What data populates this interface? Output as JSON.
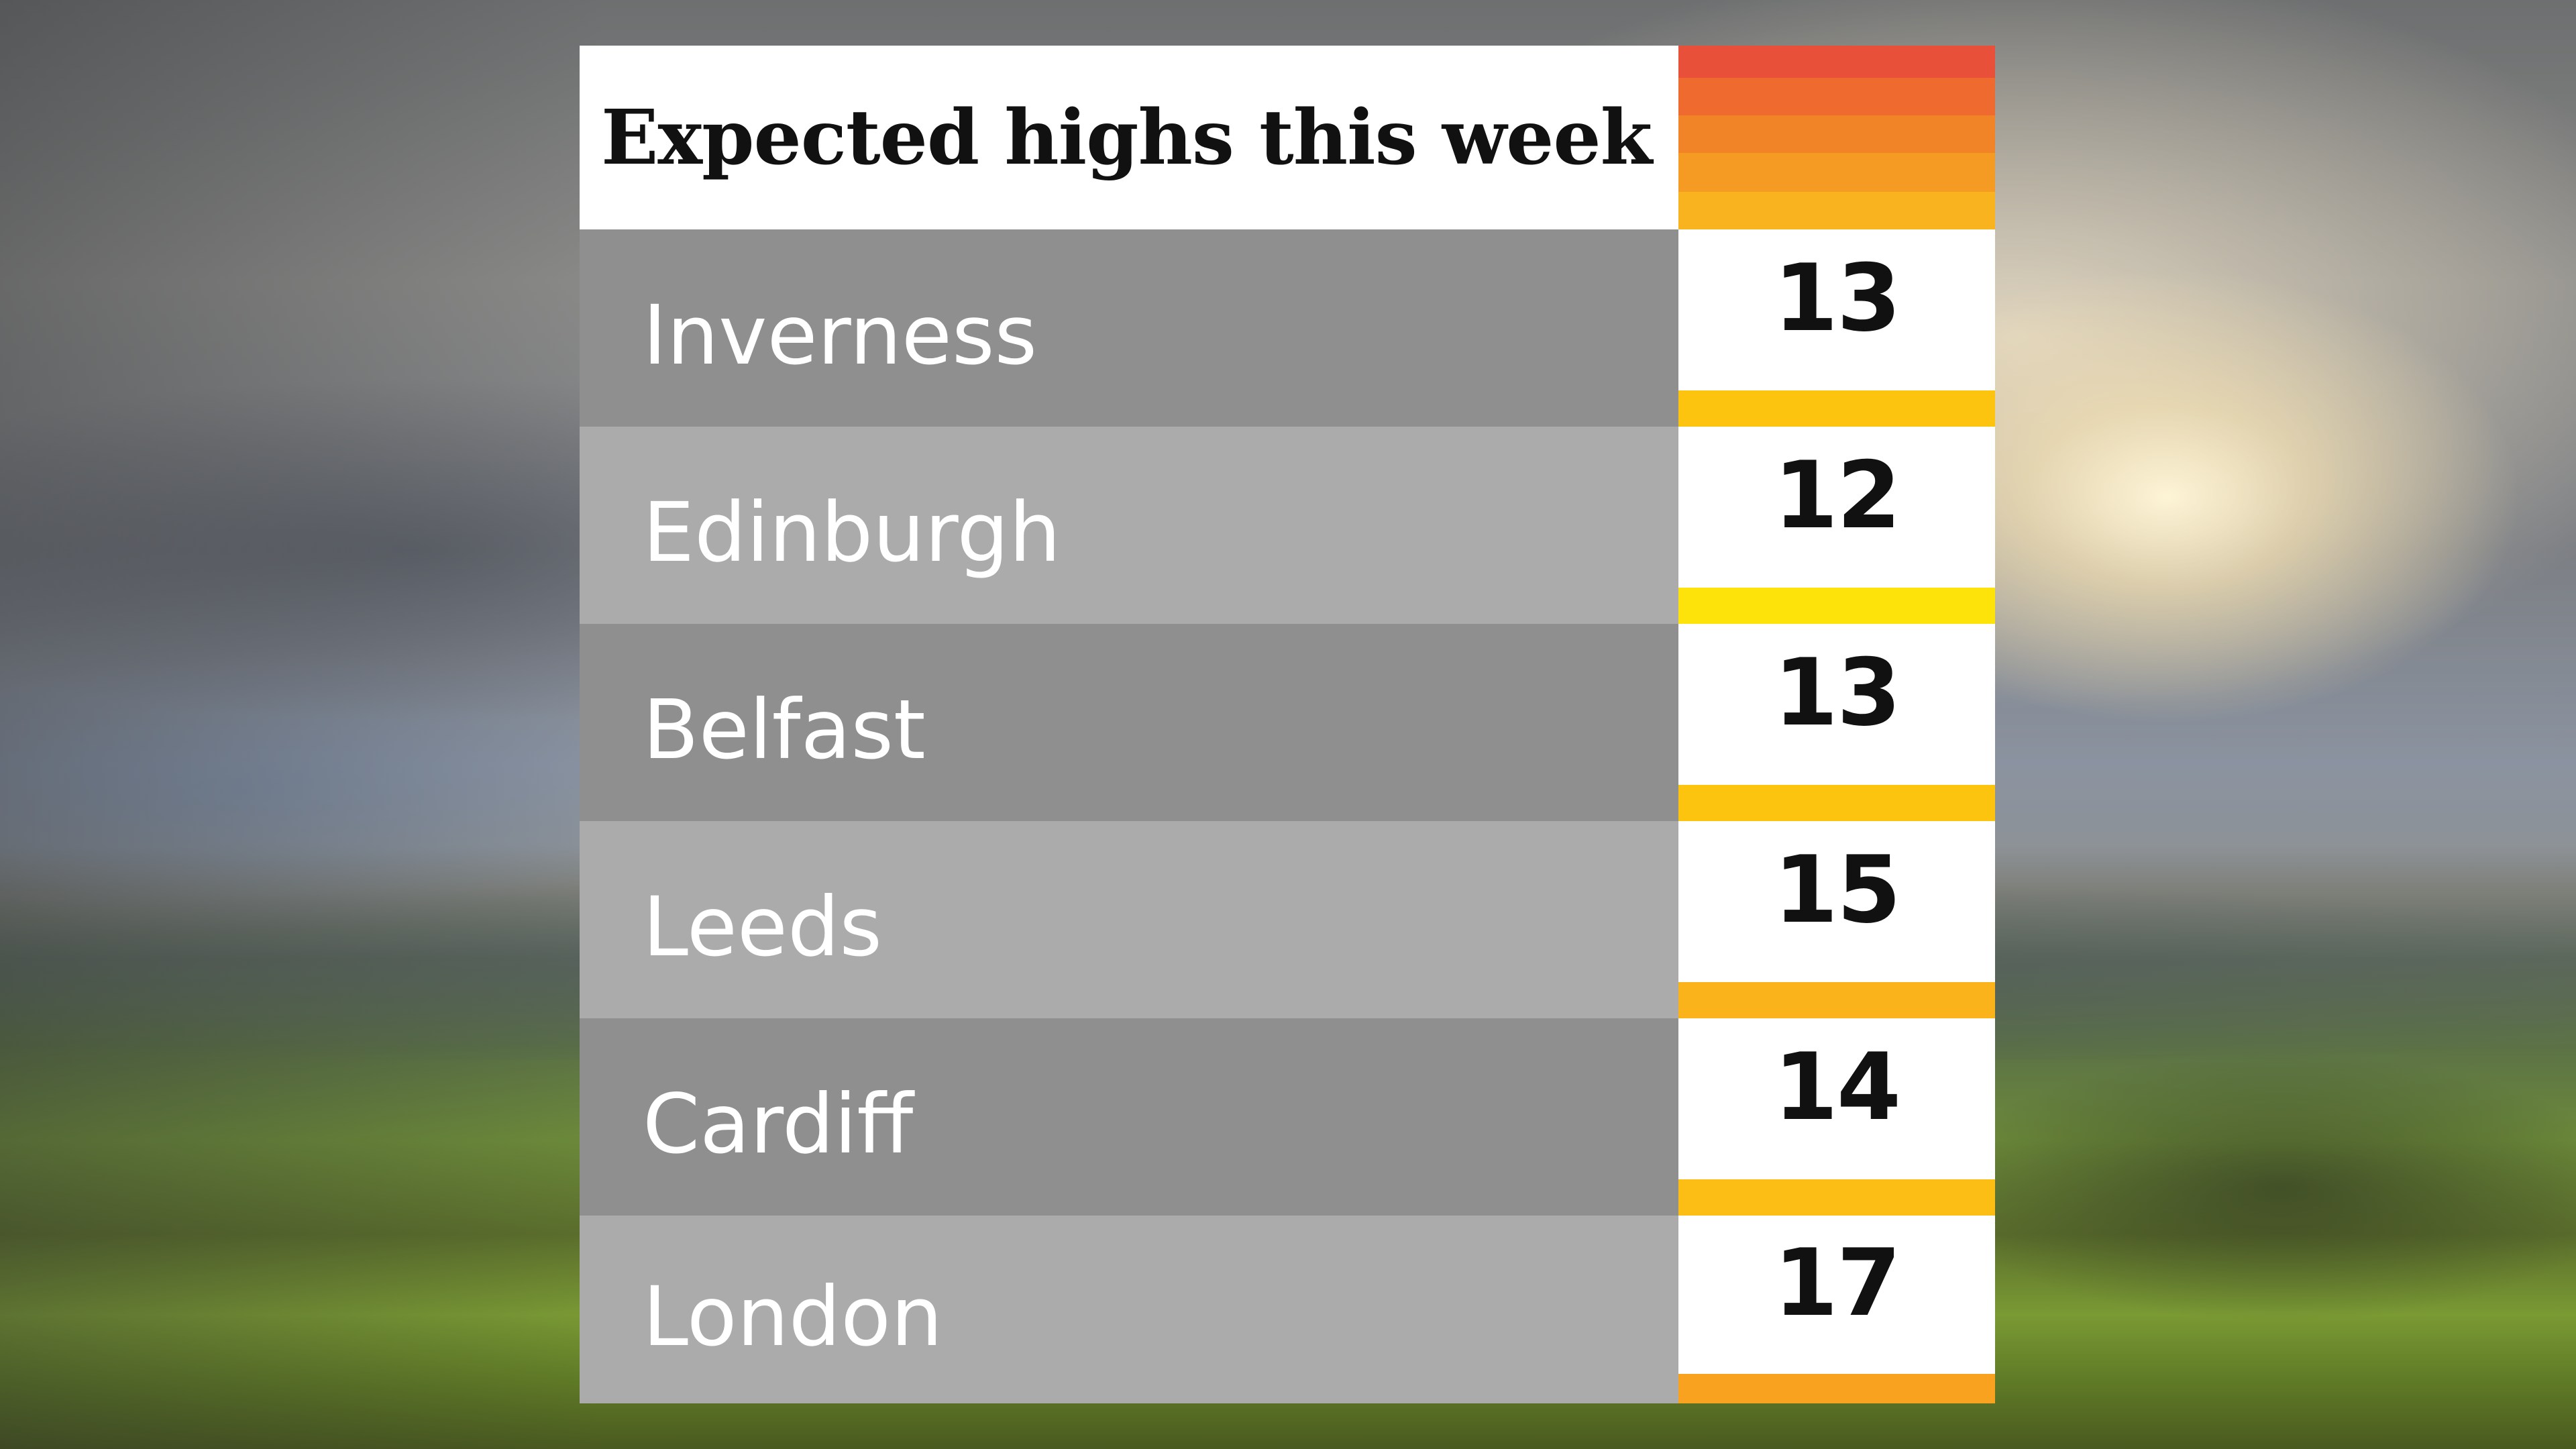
{
  "title": "Expected highs this week",
  "header_heat_colors": [
    "#e8503a",
    "#ee6a2f",
    "#f28428",
    "#f59a22",
    "#f8b31f"
  ],
  "rows": [
    {
      "city": "Inverness",
      "temp": "13",
      "bar_color": "#fcc40f"
    },
    {
      "city": "Edinburgh",
      "temp": "12",
      "bar_color": "#fde30a"
    },
    {
      "city": "Belfast",
      "temp": "13",
      "bar_color": "#fcc40f"
    },
    {
      "city": "Leeds",
      "temp": "15",
      "bar_color": "#fbb31c"
    },
    {
      "city": "Cardiff",
      "temp": "14",
      "bar_color": "#fcbd14"
    },
    {
      "city": "London",
      "temp": "17",
      "bar_color": "#f8a21f"
    }
  ]
}
